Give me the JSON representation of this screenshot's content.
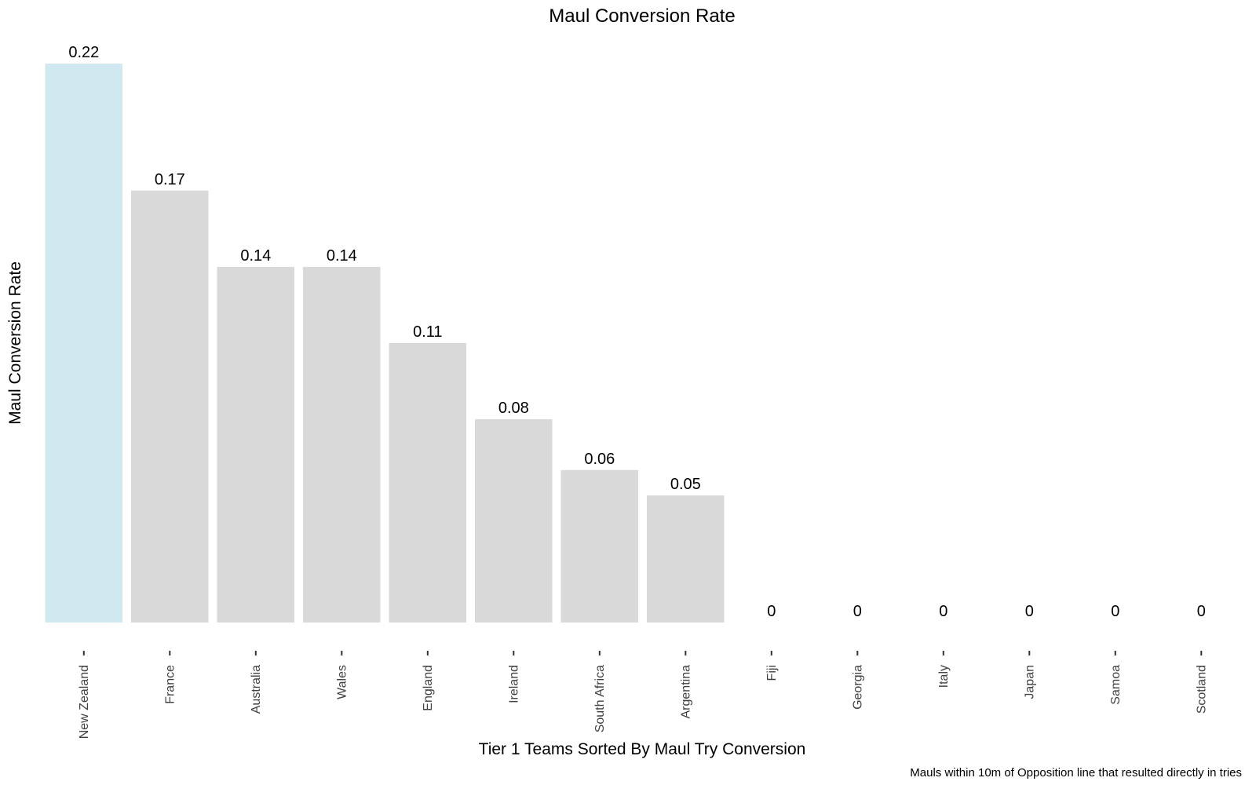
{
  "chart_data": {
    "type": "bar",
    "title": "Maul Conversion Rate",
    "xlabel": "Tier 1 Teams Sorted By Maul Try Conversion",
    "ylabel": "Maul Conversion Rate",
    "caption": "Mauls within 10m of Opposition line that resulted directly in tries",
    "categories": [
      "New Zealand",
      "France",
      "Australia",
      "Wales",
      "England",
      "Ireland",
      "South Africa",
      "Argentina",
      "Fiji",
      "Georgia",
      "Italy",
      "Japan",
      "Samoa",
      "Scotland"
    ],
    "values": [
      0.22,
      0.17,
      0.14,
      0.14,
      0.11,
      0.08,
      0.06,
      0.05,
      0,
      0,
      0,
      0,
      0,
      0
    ],
    "value_labels": [
      "0.22",
      "0.17",
      "0.14",
      "0.14",
      "0.11",
      "0.08",
      "0.06",
      "0.05",
      "0",
      "0",
      "0",
      "0",
      "0",
      "0"
    ],
    "ylim": [
      0,
      0.22
    ],
    "grid": false,
    "legend": "none",
    "colors": {
      "highlight": "#d0e8ef",
      "default": "#d9d9d9"
    },
    "highlight_index": 0
  }
}
